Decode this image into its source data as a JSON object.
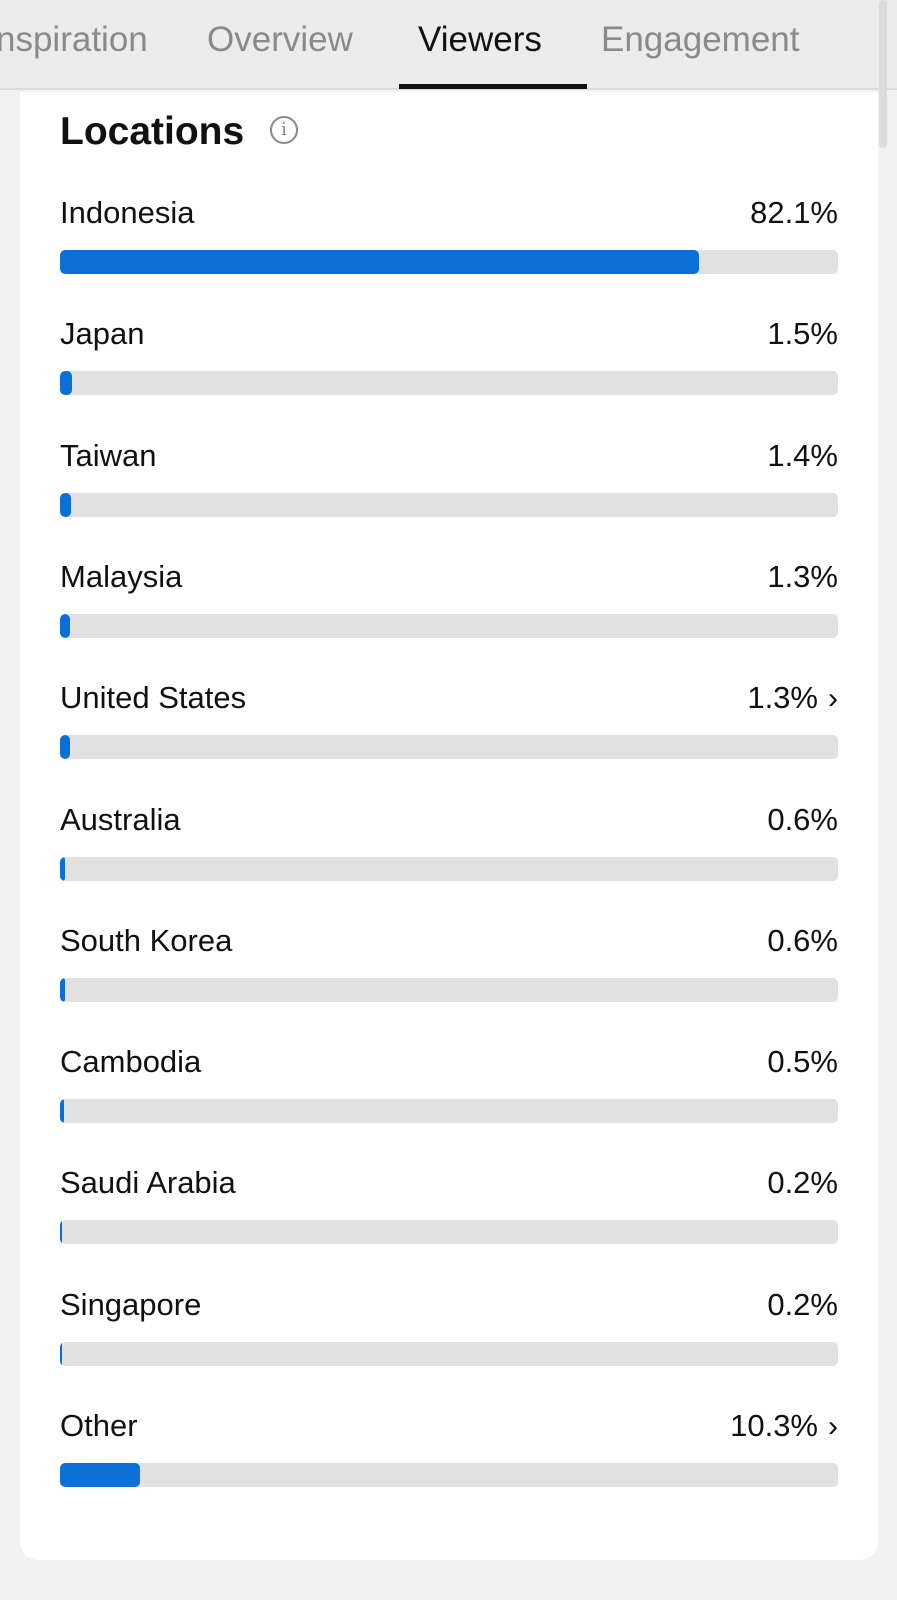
{
  "tabs": [
    {
      "label": "nspiration",
      "active": false
    },
    {
      "label": "Overview",
      "active": false
    },
    {
      "label": "Viewers",
      "active": true
    },
    {
      "label": "Engagement",
      "active": false
    }
  ],
  "locations": {
    "title": "Locations",
    "info_icon": "info-circle-icon",
    "bar_color": "#0b6fd8",
    "items": [
      {
        "name": "Indonesia",
        "percent_label": "82.1%",
        "value": 82.1,
        "chevron": false
      },
      {
        "name": "Japan",
        "percent_label": "1.5%",
        "value": 1.5,
        "chevron": false
      },
      {
        "name": "Taiwan",
        "percent_label": "1.4%",
        "value": 1.4,
        "chevron": false
      },
      {
        "name": "Malaysia",
        "percent_label": "1.3%",
        "value": 1.3,
        "chevron": false
      },
      {
        "name": "United States",
        "percent_label": "1.3%",
        "value": 1.3,
        "chevron": true
      },
      {
        "name": "Australia",
        "percent_label": "0.6%",
        "value": 0.6,
        "chevron": false
      },
      {
        "name": "South Korea",
        "percent_label": "0.6%",
        "value": 0.6,
        "chevron": false
      },
      {
        "name": "Cambodia",
        "percent_label": "0.5%",
        "value": 0.5,
        "chevron": false
      },
      {
        "name": "Saudi Arabia",
        "percent_label": "0.2%",
        "value": 0.2,
        "chevron": false
      },
      {
        "name": "Singapore",
        "percent_label": "0.2%",
        "value": 0.2,
        "chevron": false
      },
      {
        "name": "Other",
        "percent_label": "10.3%",
        "value": 10.3,
        "chevron": true
      }
    ]
  }
}
